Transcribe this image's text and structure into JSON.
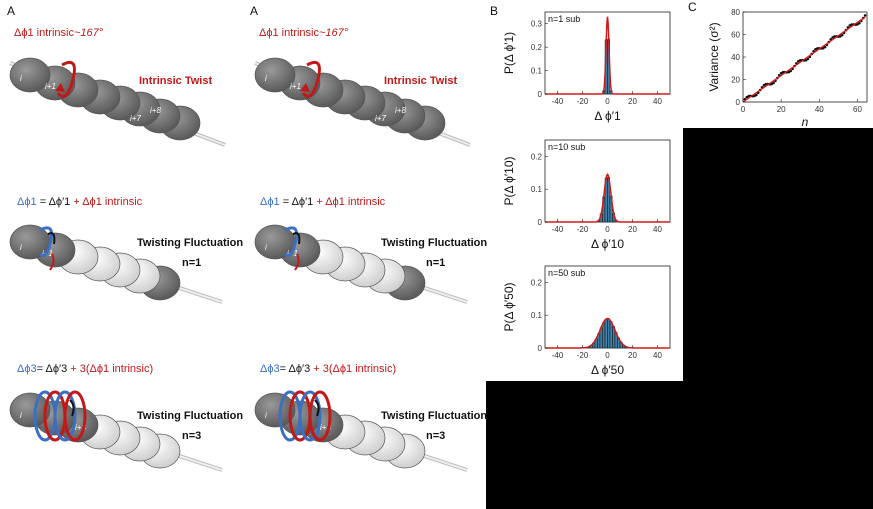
{
  "panel_a_left": {
    "letter": "A"
  },
  "panel_a_right": {
    "letter": "A"
  },
  "panel_b": {
    "letter": "B"
  },
  "panel_c": {
    "letter": "C"
  },
  "rows": [
    {
      "formula_lhs": "Δϕ1 intrinsic",
      "formula_rest": "~167°",
      "label": "Intrinsic Twist",
      "n": ""
    },
    {
      "formula_lhs": "Δϕ1",
      "formula_mid": " = Δϕ′1",
      "formula_rest": " + Δϕ1 intrinsic",
      "label": "Twisting Fluctuation",
      "n": "n=1"
    },
    {
      "formula_lhs": "Δϕ3",
      "formula_mid": "= Δϕ′3",
      "formula_rest": " + 3(Δϕ1 intrinsic)",
      "label": "Twisting Fluctuation",
      "n": "n=3"
    }
  ],
  "bead_labels": {
    "i": "i",
    "i1": "i+1",
    "i3": "i+3",
    "i7": "i+7",
    "i8": "i+8"
  },
  "colors": {
    "red": "#c21818",
    "blue": "#3a6fc4",
    "bead_dark": "#707070",
    "bead_light": "#e8e8e8",
    "bar": "#3b7fa8",
    "fit": "#d01a1a"
  },
  "chart_data": [
    {
      "type": "bar",
      "subtitle": "n=1 sub",
      "xlabel": "Δ ϕ′1",
      "ylabel": "P(Δ ϕ′1)",
      "xlim": [
        -50,
        50
      ],
      "ylim": [
        0,
        0.35
      ],
      "xticks": [
        -40,
        -20,
        0,
        20,
        40
      ],
      "yticks": [
        0,
        0.1,
        0.2,
        0.3
      ],
      "sigma": 1.2,
      "peak": 0.33
    },
    {
      "type": "bar",
      "subtitle": "n=10 sub",
      "xlabel": "Δ ϕ′10",
      "ylabel": "P(Δ ϕ′10)",
      "xlim": [
        -50,
        50
      ],
      "ylim": [
        0,
        0.25
      ],
      "xticks": [
        -40,
        -20,
        0,
        20,
        40
      ],
      "yticks": [
        0,
        0.1,
        0.2
      ],
      "sigma": 2.7,
      "peak": 0.145
    },
    {
      "type": "bar",
      "subtitle": "n=50 sub",
      "xlabel": "Δ ϕ′50",
      "ylabel": "P(Δ ϕ′50)",
      "xlim": [
        -50,
        50
      ],
      "ylim": [
        0,
        0.25
      ],
      "xticks": [
        -40,
        -20,
        0,
        20,
        40
      ],
      "yticks": [
        0,
        0.1,
        0.2
      ],
      "sigma": 6,
      "peak": 0.09
    },
    {
      "type": "scatter",
      "xlabel": "n",
      "ylabel": "Variance (σ²)",
      "xlim": [
        0,
        65
      ],
      "ylim": [
        0,
        80
      ],
      "xticks": [
        0,
        20,
        40,
        60
      ],
      "yticks": [
        0,
        20,
        40,
        60,
        80
      ],
      "slope": 1.18
    }
  ]
}
